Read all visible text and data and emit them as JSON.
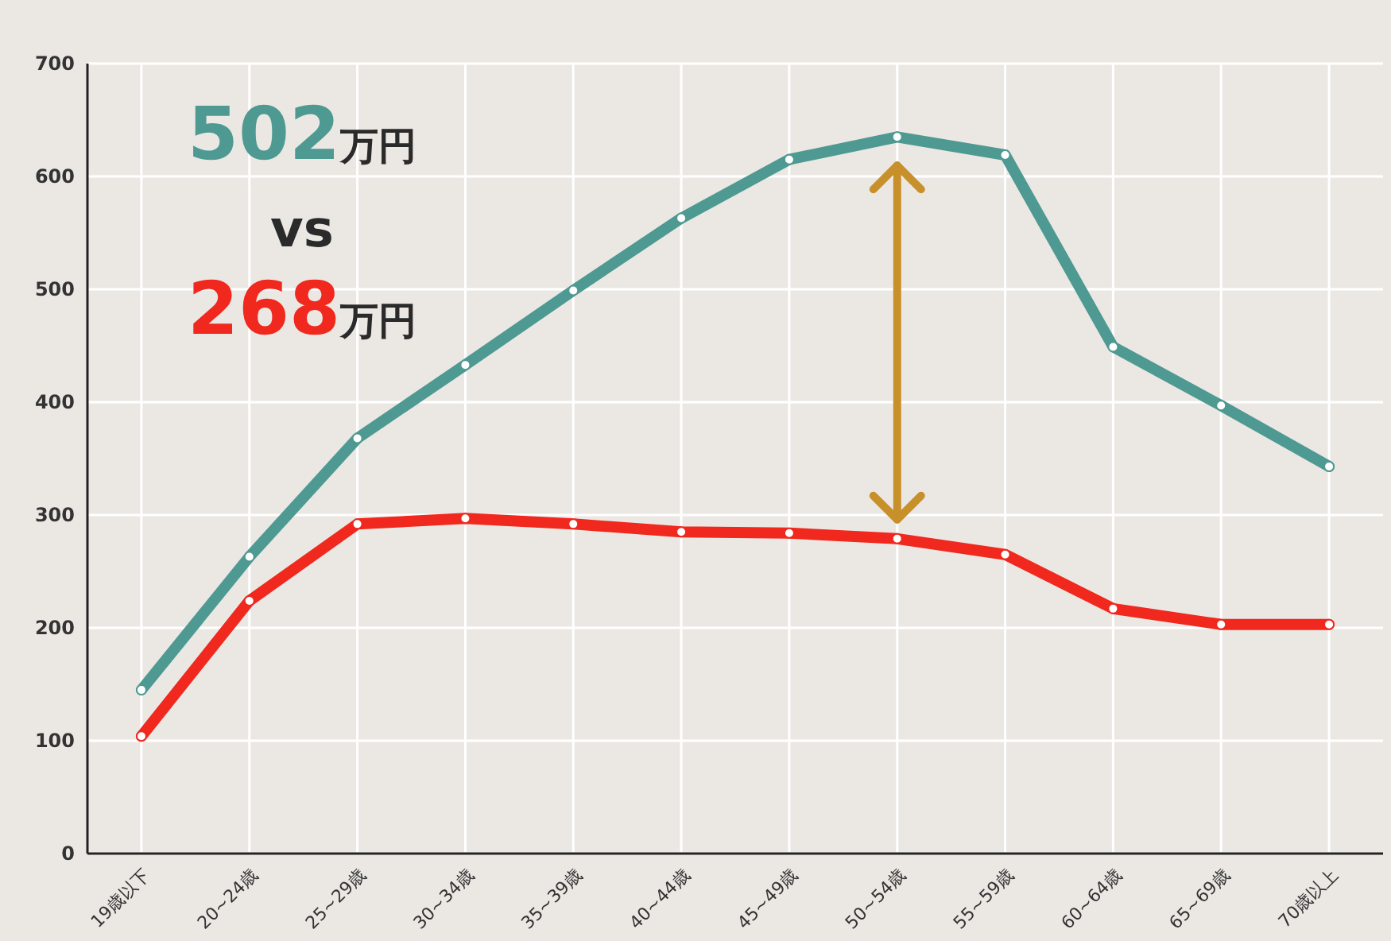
{
  "chart_data": {
    "type": "line",
    "categories": [
      "19歳以下",
      "20~24歳",
      "25~29歳",
      "30~34歳",
      "35~39歳",
      "40~44歳",
      "45~49歳",
      "50~54歳",
      "55~59歳",
      "60~64歳",
      "65~69歳",
      "70歳以上"
    ],
    "series": [
      {
        "color": "#4e9a92",
        "values": [
          145,
          263,
          368,
          433,
          499,
          563,
          615,
          635,
          619,
          449,
          397,
          343
        ]
      },
      {
        "color": "#f0281e",
        "values": [
          104,
          224,
          292,
          297,
          292,
          285,
          284,
          279,
          265,
          217,
          203,
          203
        ]
      }
    ],
    "ylim": [
      0,
      700
    ],
    "yticks": [
      0,
      100,
      200,
      300,
      400,
      500,
      600,
      700
    ],
    "grid": true,
    "marker": "circle",
    "line_style": "solid",
    "annotations": [
      "502万円",
      "vs",
      "268万円"
    ]
  }
}
